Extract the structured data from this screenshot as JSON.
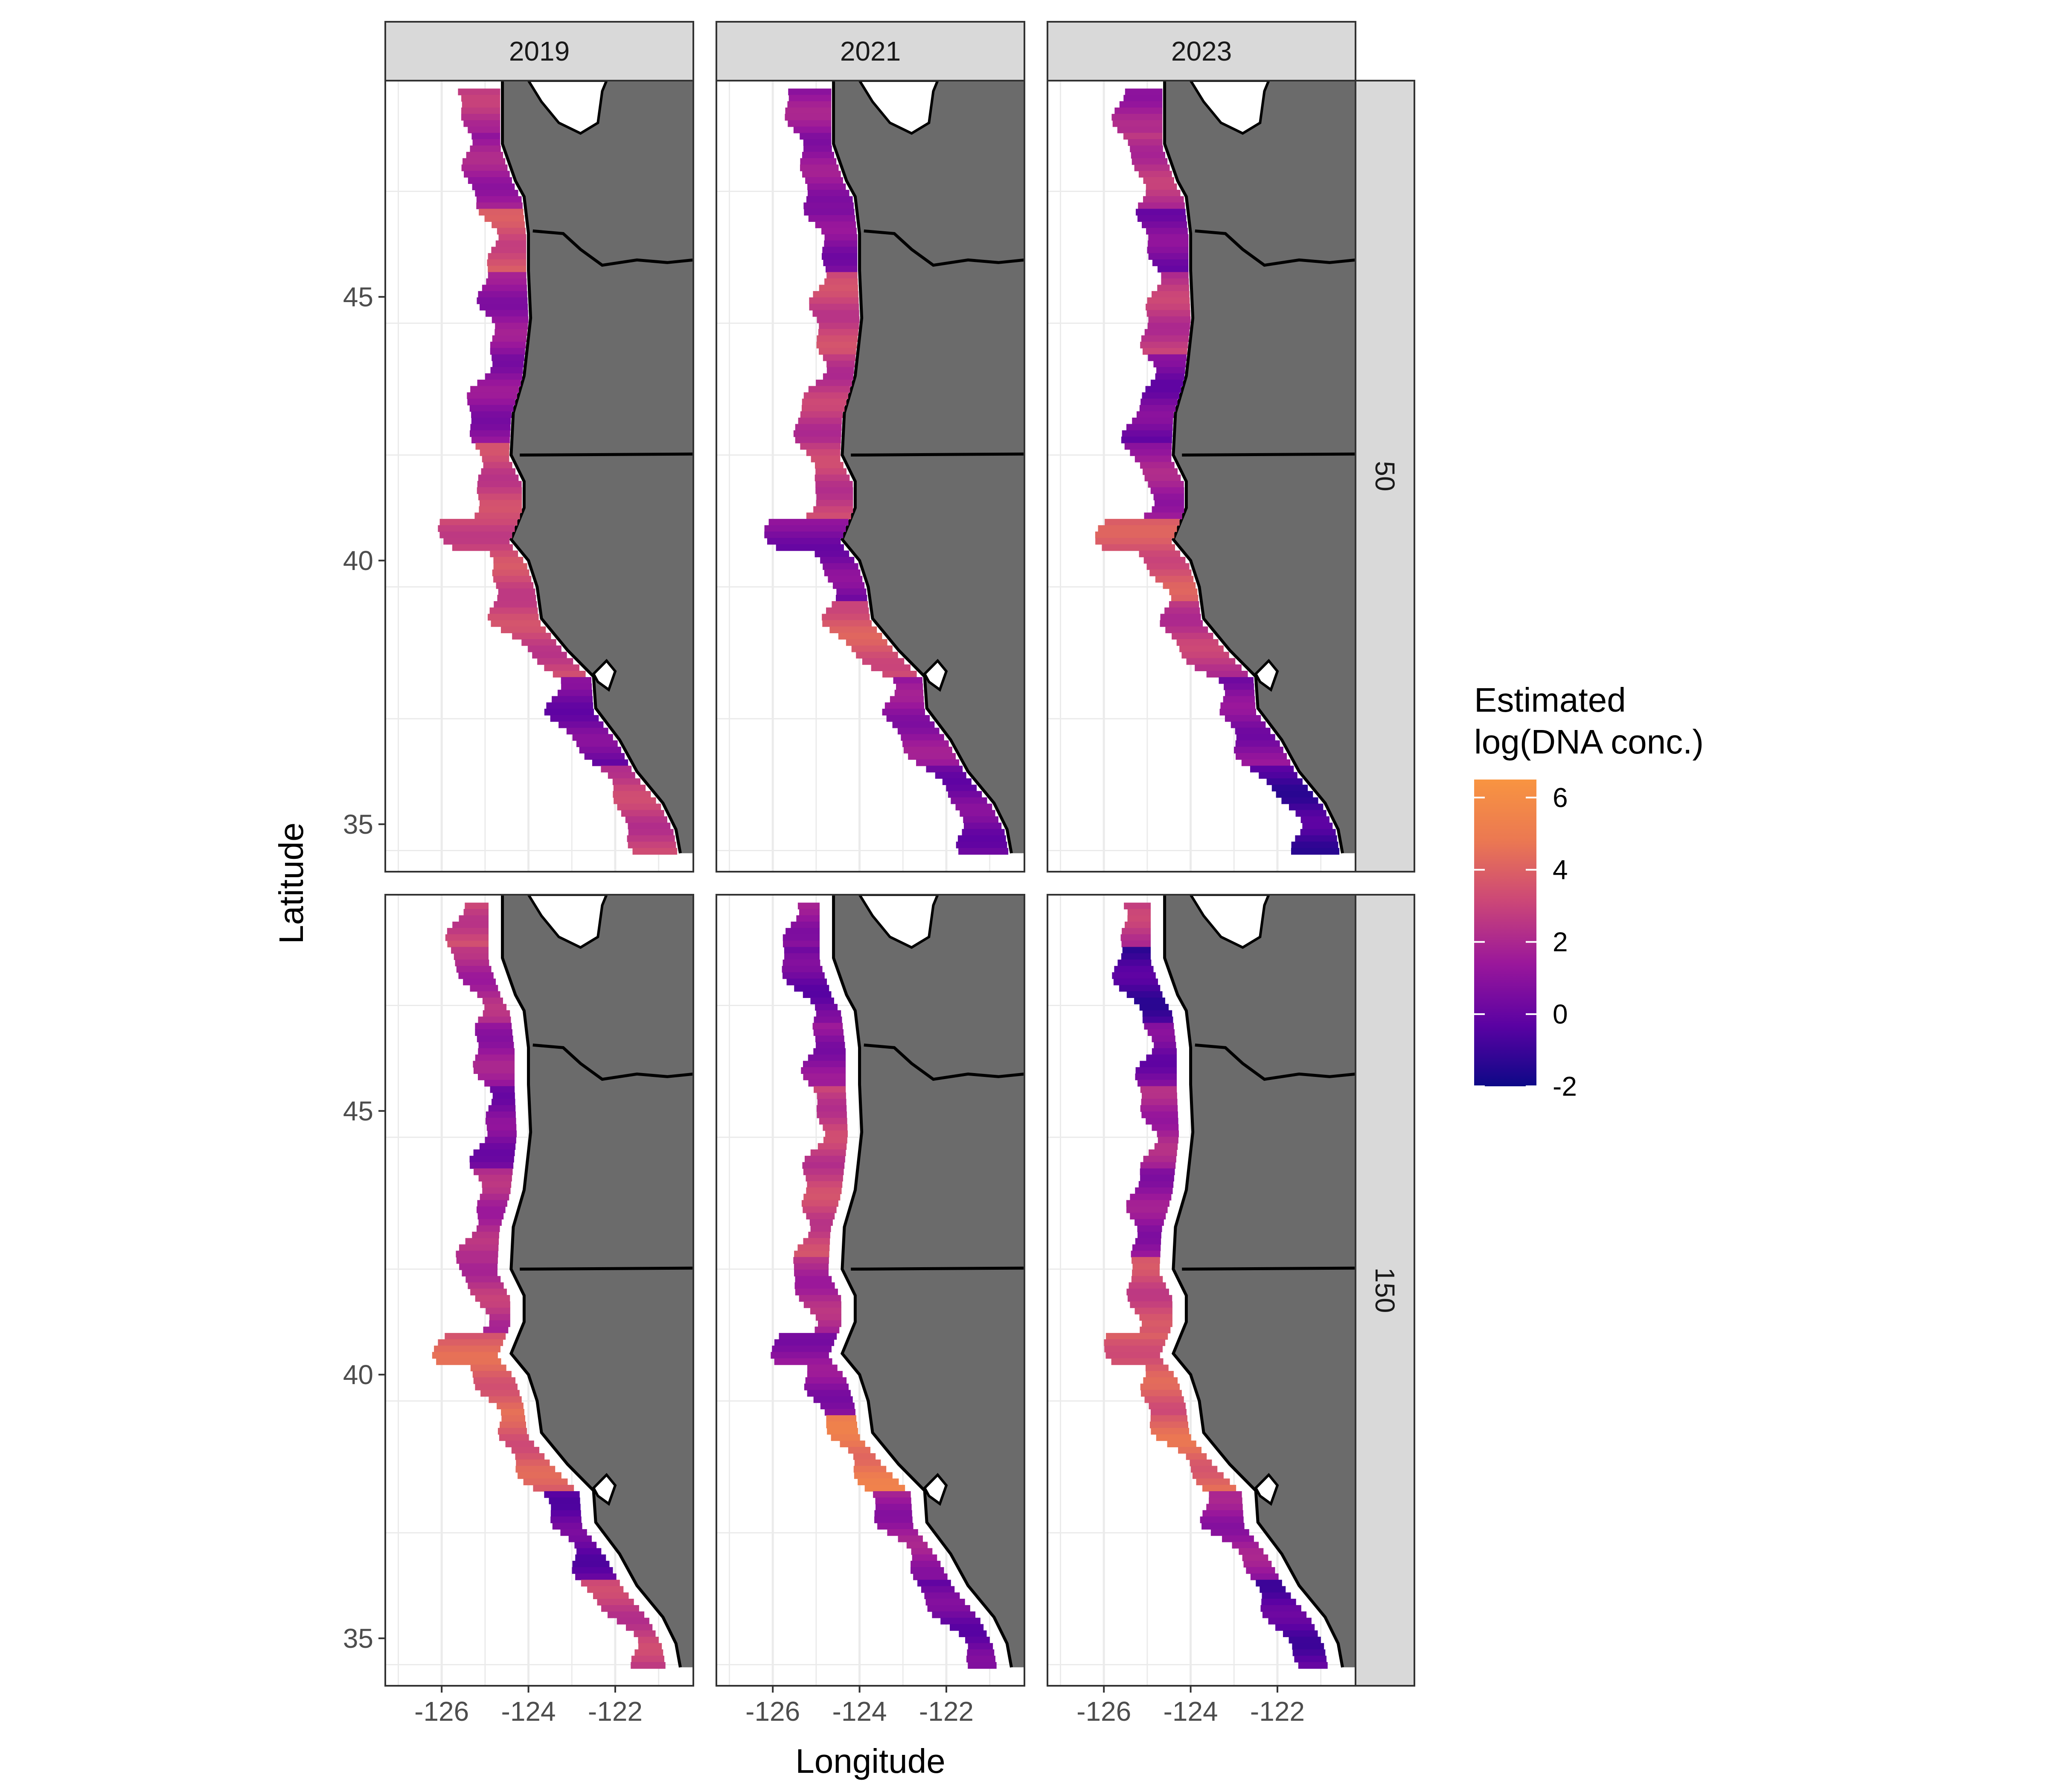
{
  "facets": {
    "columns": [
      "2019",
      "2021",
      "2023"
    ],
    "rows": [
      "50",
      "150"
    ]
  },
  "axes": {
    "xlabel": "Longitude",
    "ylabel": "Latitude",
    "x_ticks": [
      -126,
      -124,
      -122
    ],
    "x_tick_labels": [
      "-126",
      "-124",
      "-122"
    ],
    "y_ticks": [
      35,
      40,
      45
    ],
    "y_tick_labels": [
      "35",
      "40",
      "45"
    ]
  },
  "legend": {
    "title_line1": "Estimated",
    "title_line2": " log(DNA conc.)",
    "breaks": [
      6,
      4,
      2,
      0,
      -2
    ],
    "break_labels": [
      "6",
      "4",
      "2",
      "0",
      "-2"
    ],
    "range": [
      -2,
      6.5
    ],
    "colors": [
      "#0d0887",
      "#5b02a3",
      "#9a179b",
      "#cb4678",
      "#eb7852",
      "#f89441"
    ]
  },
  "colors": {
    "land": "#6b6b6b",
    "coast_line": "#000000",
    "strip_fill": "#d9d9d9",
    "panel_border": "#333333",
    "grid": "#ebebeb"
  },
  "chart_data": {
    "type": "heatmap",
    "subtype": "faceted spatial map (columns: year, rows: depth)",
    "xlabel": "Longitude",
    "ylabel": "Latitude",
    "xlim": [
      -127.3,
      -120.2
    ],
    "ylim": [
      34.1,
      49.1
    ],
    "grid": true,
    "legend_position": "right",
    "fill_label": "Estimated\n log(DNA conc.)",
    "fill_range": [
      -2,
      6.5
    ],
    "panels": [
      {
        "column": "2019",
        "row": "50",
        "segments": [
          {
            "lat": 48.8,
            "value": 2.4
          },
          {
            "lat": 47.5,
            "value": 1.6
          },
          {
            "lat": 46.0,
            "value": 3.4
          },
          {
            "lat": 45.0,
            "value": 1.2
          },
          {
            "lat": 43.0,
            "value": 1.0
          },
          {
            "lat": 41.5,
            "value": 3.0
          },
          {
            "lat": 40.2,
            "value": 3.2
          },
          {
            "lat": 38.3,
            "value": 3.0
          },
          {
            "lat": 37.3,
            "value": 0.4
          },
          {
            "lat": 35.0,
            "value": 2.8
          }
        ]
      },
      {
        "column": "2021",
        "row": "50",
        "segments": [
          {
            "lat": 48.8,
            "value": 1.4
          },
          {
            "lat": 47.5,
            "value": 1.2
          },
          {
            "lat": 46.0,
            "value": 0.8
          },
          {
            "lat": 45.0,
            "value": 3.0
          },
          {
            "lat": 43.0,
            "value": 2.6
          },
          {
            "lat": 41.5,
            "value": 2.8
          },
          {
            "lat": 40.2,
            "value": 0.6
          },
          {
            "lat": 38.3,
            "value": 3.6
          },
          {
            "lat": 37.3,
            "value": 1.2
          },
          {
            "lat": 35.0,
            "value": 0.4
          }
        ]
      },
      {
        "column": "2023",
        "row": "50",
        "segments": [
          {
            "lat": 48.8,
            "value": 1.6
          },
          {
            "lat": 47.5,
            "value": 2.4
          },
          {
            "lat": 46.0,
            "value": 0.6
          },
          {
            "lat": 45.0,
            "value": 2.6
          },
          {
            "lat": 43.0,
            "value": 0.4
          },
          {
            "lat": 41.5,
            "value": 1.6
          },
          {
            "lat": 40.2,
            "value": 3.6
          },
          {
            "lat": 38.3,
            "value": 2.6
          },
          {
            "lat": 37.3,
            "value": 0.8
          },
          {
            "lat": 35.0,
            "value": -0.8
          }
        ]
      },
      {
        "column": "2019",
        "row": "150",
        "segments": [
          {
            "lat": 48.8,
            "value": 3.0
          },
          {
            "lat": 47.5,
            "value": 2.0
          },
          {
            "lat": 46.0,
            "value": 1.4
          },
          {
            "lat": 45.0,
            "value": 0.6
          },
          {
            "lat": 43.0,
            "value": 2.0
          },
          {
            "lat": 41.5,
            "value": 2.4
          },
          {
            "lat": 40.2,
            "value": 4.0
          },
          {
            "lat": 38.3,
            "value": 3.8
          },
          {
            "lat": 37.3,
            "value": 0.0
          },
          {
            "lat": 35.0,
            "value": 2.8
          }
        ]
      },
      {
        "column": "2021",
        "row": "150",
        "segments": [
          {
            "lat": 48.8,
            "value": 1.2
          },
          {
            "lat": 47.5,
            "value": 0.2
          },
          {
            "lat": 46.0,
            "value": 1.0
          },
          {
            "lat": 45.0,
            "value": 2.8
          },
          {
            "lat": 43.0,
            "value": 3.0
          },
          {
            "lat": 41.5,
            "value": 2.0
          },
          {
            "lat": 40.2,
            "value": 1.0
          },
          {
            "lat": 38.3,
            "value": 4.8
          },
          {
            "lat": 37.3,
            "value": 1.4
          },
          {
            "lat": 35.0,
            "value": 0.2
          }
        ]
      },
      {
        "column": "2023",
        "row": "150",
        "segments": [
          {
            "lat": 48.8,
            "value": 2.6
          },
          {
            "lat": 47.5,
            "value": -0.8
          },
          {
            "lat": 46.0,
            "value": 0.4
          },
          {
            "lat": 45.0,
            "value": 1.8
          },
          {
            "lat": 43.0,
            "value": 1.2
          },
          {
            "lat": 41.5,
            "value": 3.2
          },
          {
            "lat": 40.2,
            "value": 3.8
          },
          {
            "lat": 38.3,
            "value": 4.2
          },
          {
            "lat": 37.3,
            "value": 1.4
          },
          {
            "lat": 35.0,
            "value": -0.4
          }
        ]
      }
    ]
  }
}
